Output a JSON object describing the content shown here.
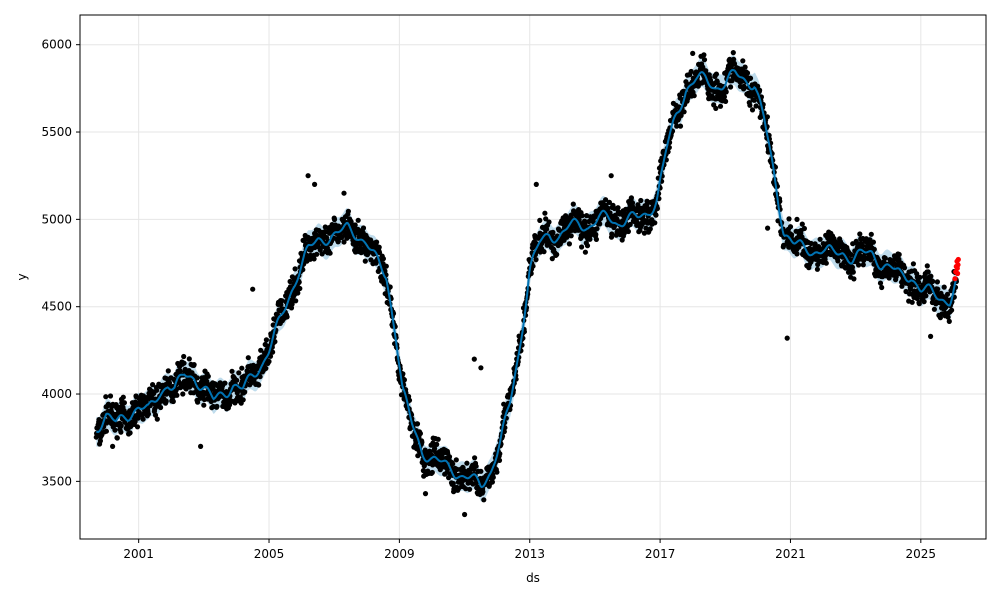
{
  "chart_data": {
    "type": "scatter",
    "title": "",
    "xlabel": "ds",
    "ylabel": "y",
    "x_range": [
      1999.2,
      2027.0
    ],
    "ylim": [
      3170,
      6170
    ],
    "grid": true,
    "x_ticks": [
      2001,
      2005,
      2009,
      2013,
      2017,
      2021,
      2025
    ],
    "y_ticks": [
      3500,
      4000,
      4500,
      5000,
      5500,
      6000
    ],
    "colors": {
      "observed": "#000000",
      "forecast_points": "#ff0000",
      "trend_line": "#0072B2",
      "uncertainty_band": "#0072B2",
      "grid": "#e6e6e6"
    },
    "band_half_width": 85,
    "series": [
      {
        "role": "fitted",
        "x": [
          1999.7,
          2000.0,
          2000.3,
          2000.6,
          2001.0,
          2001.3,
          2001.6,
          2001.9,
          2002.1,
          2002.4,
          2002.7,
          2003.0,
          2003.3,
          2003.6,
          2003.9,
          2004.2,
          2004.5,
          2004.8,
          2005.0,
          2005.3,
          2005.6,
          2005.9,
          2006.2,
          2006.5,
          2006.8,
          2007.1,
          2007.4,
          2007.7,
          2008.0,
          2008.3,
          2008.6,
          2008.9,
          2009.1,
          2009.4,
          2009.7,
          2010.0,
          2010.3,
          2010.6,
          2010.9,
          2011.2,
          2011.5,
          2011.8,
          2012.1,
          2012.4,
          2012.7,
          2013.0,
          2013.3,
          2013.6,
          2013.9,
          2014.2,
          2014.5,
          2014.8,
          2015.1,
          2015.4,
          2015.7,
          2016.0,
          2016.3,
          2016.6,
          2016.9,
          2017.2,
          2017.5,
          2017.8,
          2018.1,
          2018.4,
          2018.7,
          2019.0,
          2019.3,
          2019.6,
          2019.9,
          2020.2,
          2020.5,
          2020.8,
          2021.1,
          2021.4,
          2021.7,
          2022.0,
          2022.3,
          2022.6,
          2022.9,
          2023.2,
          2023.5,
          2023.8,
          2024.1,
          2024.4,
          2024.7,
          2025.0,
          2025.3,
          2025.6,
          2025.9,
          2026.1
        ],
        "y": [
          3810,
          3870,
          3830,
          3880,
          3920,
          3900,
          4000,
          4060,
          4020,
          4110,
          4100,
          4030,
          3960,
          4010,
          4050,
          4020,
          4110,
          4180,
          4250,
          4400,
          4550,
          4700,
          4820,
          4880,
          4900,
          4910,
          4950,
          4920,
          4860,
          4760,
          4680,
          4330,
          4010,
          3820,
          3680,
          3620,
          3600,
          3580,
          3530,
          3510,
          3480,
          3560,
          3720,
          3950,
          4280,
          4710,
          4860,
          4920,
          4900,
          4950,
          4980,
          4960,
          5000,
          5010,
          4980,
          5010,
          5000,
          5030,
          5120,
          5400,
          5600,
          5750,
          5800,
          5800,
          5760,
          5780,
          5830,
          5800,
          5780,
          5560,
          5250,
          4930,
          4860,
          4830,
          4820,
          4830,
          4800,
          4810,
          4780,
          4800,
          4800,
          4750,
          4720,
          4670,
          4680,
          4600,
          4580,
          4550,
          4540,
          4640
        ]
      },
      {
        "role": "observed",
        "seed": 7,
        "points_per_year": 110,
        "x_range": [
          1999.7,
          2026.1
        ],
        "spread": 55
      },
      {
        "role": "forecast_points",
        "x": [
          2026.05,
          2026.07,
          2026.09,
          2026.11,
          2026.12,
          2026.13,
          2026.14,
          2026.15
        ],
        "y": [
          4660,
          4700,
          4730,
          4760,
          4720,
          4690,
          4740,
          4770
        ]
      }
    ],
    "outliers": [
      {
        "x": 2000.2,
        "y": 3700
      },
      {
        "x": 2002.9,
        "y": 3700
      },
      {
        "x": 2004.5,
        "y": 4600
      },
      {
        "x": 2006.2,
        "y": 5250
      },
      {
        "x": 2006.4,
        "y": 5200
      },
      {
        "x": 2007.3,
        "y": 5150
      },
      {
        "x": 2009.8,
        "y": 3430
      },
      {
        "x": 2011.0,
        "y": 3310
      },
      {
        "x": 2011.3,
        "y": 4200
      },
      {
        "x": 2011.5,
        "y": 4150
      },
      {
        "x": 2013.2,
        "y": 5200
      },
      {
        "x": 2015.5,
        "y": 5250
      },
      {
        "x": 2018.0,
        "y": 5950
      },
      {
        "x": 2020.3,
        "y": 4950
      },
      {
        "x": 2020.9,
        "y": 4320
      },
      {
        "x": 2021.2,
        "y": 5000
      },
      {
        "x": 2025.3,
        "y": 4330
      }
    ]
  }
}
